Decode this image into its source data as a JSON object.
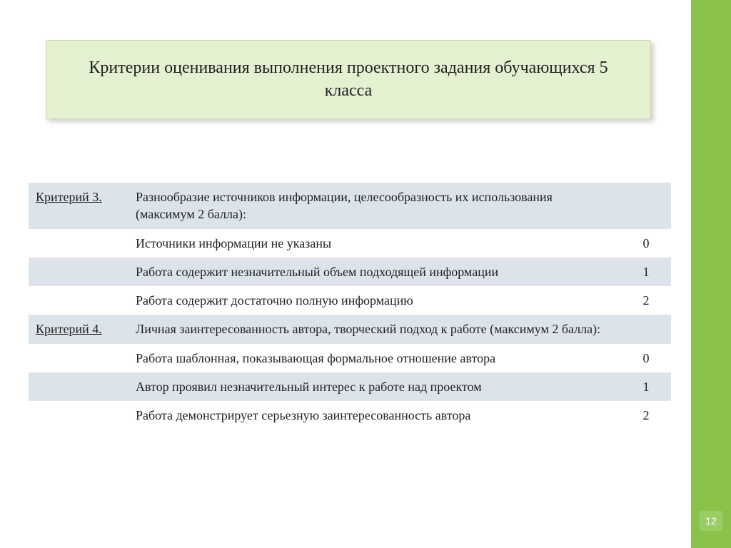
{
  "title": "Критерии оценивания выполнения проектного задания обучающихся 5 класса",
  "page_number": "12",
  "colors": {
    "side_strip": "#8bc34a",
    "page_badge": "#9ccc65",
    "title_bg": "#e4f1d0",
    "title_border": "#c9dca9",
    "band_bg": "#dde3ea",
    "text": "#222222"
  },
  "rows": [
    {
      "band": true,
      "criterion": "Критерий 3.",
      "desc": "Разнообразие источников информации, целесообразность их использования (максимум 2 балла):",
      "score": ""
    },
    {
      "band": false,
      "criterion": "",
      "desc": "Источники информации не указаны",
      "score": "0"
    },
    {
      "band": true,
      "criterion": "",
      "desc": "Работа содержит незначительный объем подходящей информации",
      "score": "1"
    },
    {
      "band": false,
      "criterion": "",
      "desc": "Работа содержит достаточно полную информацию",
      "score": "2"
    },
    {
      "band": true,
      "criterion": "Критерий 4.",
      "desc": "Личная заинтересованность автора, творческий подход к работе (максимум 2 балла):",
      "score": ""
    },
    {
      "band": false,
      "criterion": "",
      "desc": "Работа шаблонная, показывающая формальное отношение автора",
      "score": "0"
    },
    {
      "band": true,
      "criterion": "",
      "desc": "Автор проявил незначительный интерес к работе над проектом",
      "score": "1"
    },
    {
      "band": false,
      "criterion": "",
      "desc": "Работа демонстрирует серьезную заинтересованность автора",
      "score": "2"
    }
  ]
}
